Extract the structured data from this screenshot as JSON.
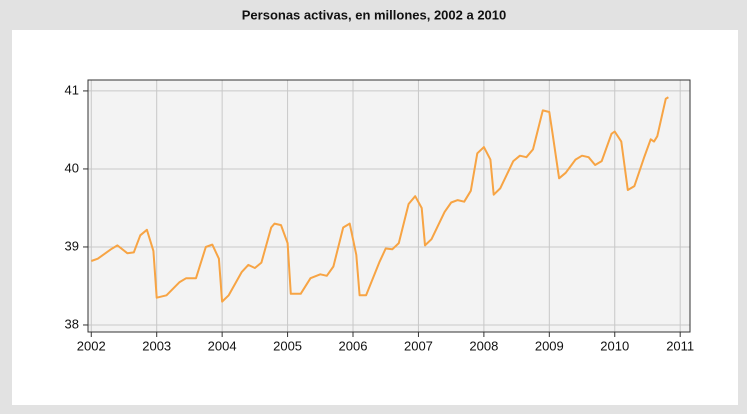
{
  "chart_data": {
    "type": "line",
    "title": "Personas activas, en millones, 2002 a 2010",
    "color": "#f7a444",
    "grid": true,
    "xlim": [
      2001.95,
      2011.15
    ],
    "ylim": [
      37.91,
      41.14
    ],
    "xticks": [
      2002,
      2003,
      2004,
      2005,
      2006,
      2007,
      2008,
      2009,
      2010,
      2011
    ],
    "yticks": [
      38,
      39,
      40,
      41
    ],
    "x": [
      2002.0,
      2002.1,
      2002.3,
      2002.4,
      2002.55,
      2002.65,
      2002.75,
      2002.85,
      2002.95,
      2003.0,
      2003.15,
      2003.35,
      2003.45,
      2003.6,
      2003.75,
      2003.85,
      2003.95,
      2004.0,
      2004.1,
      2004.3,
      2004.4,
      2004.5,
      2004.6,
      2004.75,
      2004.8,
      2004.9,
      2005.0,
      2005.05,
      2005.2,
      2005.35,
      2005.5,
      2005.6,
      2005.7,
      2005.85,
      2005.95,
      2006.05,
      2006.1,
      2006.2,
      2006.4,
      2006.5,
      2006.6,
      2006.7,
      2006.85,
      2006.95,
      2007.05,
      2007.1,
      2007.2,
      2007.4,
      2007.5,
      2007.6,
      2007.7,
      2007.8,
      2007.9,
      2008.0,
      2008.1,
      2008.15,
      2008.25,
      2008.45,
      2008.55,
      2008.65,
      2008.75,
      2008.9,
      2009.0,
      2009.05,
      2009.15,
      2009.25,
      2009.4,
      2009.5,
      2009.6,
      2009.7,
      2009.8,
      2009.95,
      2010.0,
      2010.1,
      2010.2,
      2010.3,
      2010.45,
      2010.55,
      2010.6,
      2010.65,
      2010.78,
      2010.82
    ],
    "values": [
      38.82,
      38.85,
      38.97,
      39.02,
      38.92,
      38.93,
      39.15,
      39.22,
      38.95,
      38.35,
      38.38,
      38.55,
      38.6,
      38.6,
      39.0,
      39.03,
      38.85,
      38.3,
      38.38,
      38.68,
      38.77,
      38.73,
      38.8,
      39.25,
      39.3,
      39.28,
      39.05,
      38.4,
      38.4,
      38.6,
      38.65,
      38.63,
      38.75,
      39.25,
      39.3,
      38.9,
      38.38,
      38.38,
      38.8,
      38.98,
      38.97,
      39.05,
      39.55,
      39.65,
      39.5,
      39.02,
      39.1,
      39.45,
      39.57,
      39.6,
      39.58,
      39.72,
      40.2,
      40.28,
      40.12,
      39.67,
      39.75,
      40.1,
      40.17,
      40.15,
      40.25,
      40.75,
      40.73,
      40.45,
      39.88,
      39.95,
      40.12,
      40.17,
      40.15,
      40.05,
      40.1,
      40.45,
      40.48,
      40.35,
      39.73,
      39.78,
      40.15,
      40.38,
      40.35,
      40.42,
      40.9,
      40.92
    ]
  }
}
